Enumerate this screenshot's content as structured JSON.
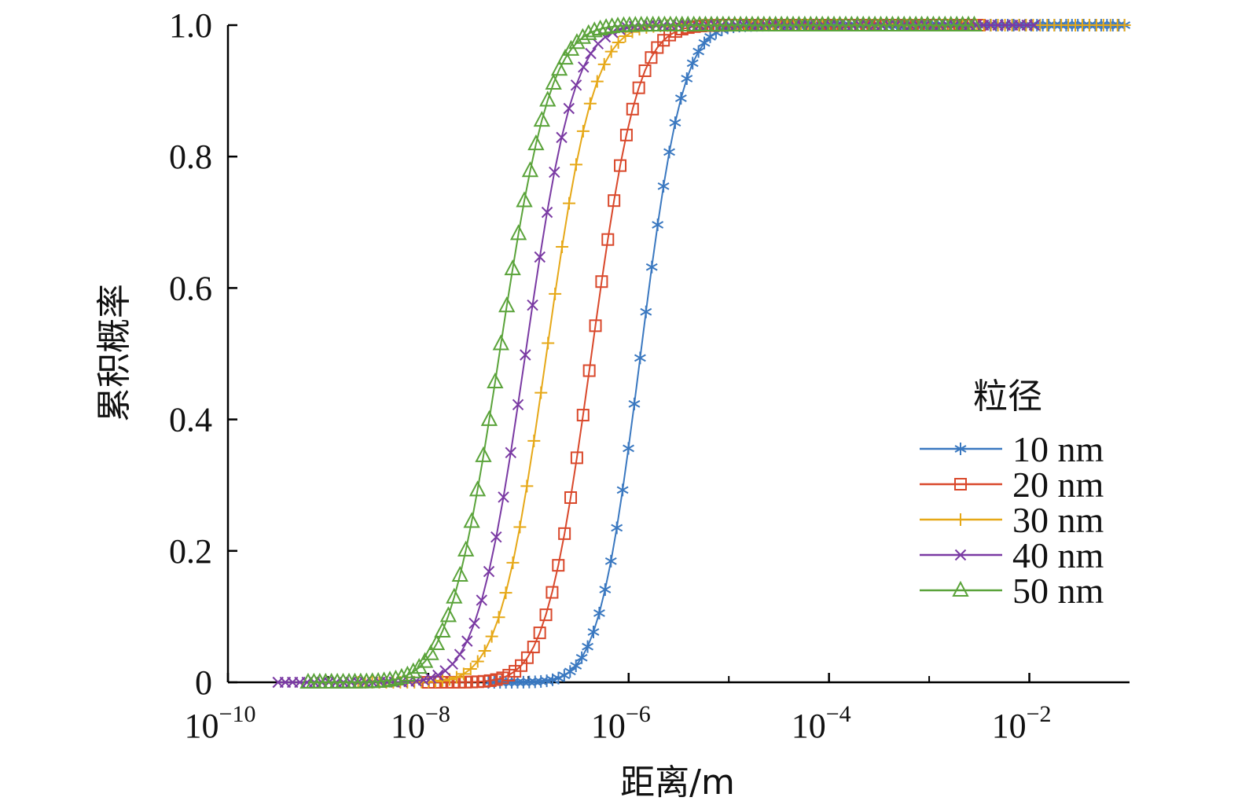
{
  "chart_data": {
    "type": "line",
    "title": "",
    "xlabel": "距离/m",
    "ylabel": "累积概率",
    "xscale": "log",
    "xlim_exp": [
      -10,
      -1
    ],
    "ylim": [
      0,
      1
    ],
    "x_ticks": [
      {
        "base": "10",
        "exp": "−10",
        "value": -10
      },
      {
        "base": "10",
        "exp": "−8",
        "value": -8
      },
      {
        "base": "10",
        "exp": "−6",
        "value": -6
      },
      {
        "base": "10",
        "exp": "−4",
        "value": -4
      },
      {
        "base": "10",
        "exp": "−2",
        "value": -2
      }
    ],
    "y_ticks": [
      {
        "label": "0",
        "value": 0
      },
      {
        "label": "0.2",
        "value": 0.2
      },
      {
        "label": "0.4",
        "value": 0.4
      },
      {
        "label": "0.6",
        "value": 0.6
      },
      {
        "label": "0.8",
        "value": 0.8
      },
      {
        "label": "1.0",
        "value": 1.0
      }
    ],
    "grid": false,
    "legend": {
      "title": "粒径",
      "position": "right"
    },
    "series": [
      {
        "name": "10 nm",
        "color": "#3a78c0",
        "marker": "asterisk",
        "median_log10": -5.88,
        "log_sigma": 0.33,
        "x_start_log10": -7.4,
        "x_end_log10": -1.05,
        "points": 110
      },
      {
        "name": "20 nm",
        "color": "#d9482b",
        "marker": "square",
        "median_log10": -6.37,
        "log_sigma": 0.36,
        "x_start_log10": -8.0,
        "x_end_log10": -2.5,
        "points": 90
      },
      {
        "name": "30 nm",
        "color": "#e6a817",
        "marker": "plus",
        "median_log10": -6.82,
        "log_sigma": 0.37,
        "x_start_log10": -8.7,
        "x_end_log10": -1.05,
        "points": 110
      },
      {
        "name": "40 nm",
        "color": "#7a3aa3",
        "marker": "cross",
        "median_log10": -7.03,
        "log_sigma": 0.38,
        "x_start_log10": -9.5,
        "x_end_log10": -1.95,
        "points": 105
      },
      {
        "name": "50 nm",
        "color": "#5aa33a",
        "marker": "triangle",
        "median_log10": -7.29,
        "log_sigma": 0.4,
        "x_start_log10": -9.2,
        "x_end_log10": -2.55,
        "points": 115
      }
    ]
  }
}
